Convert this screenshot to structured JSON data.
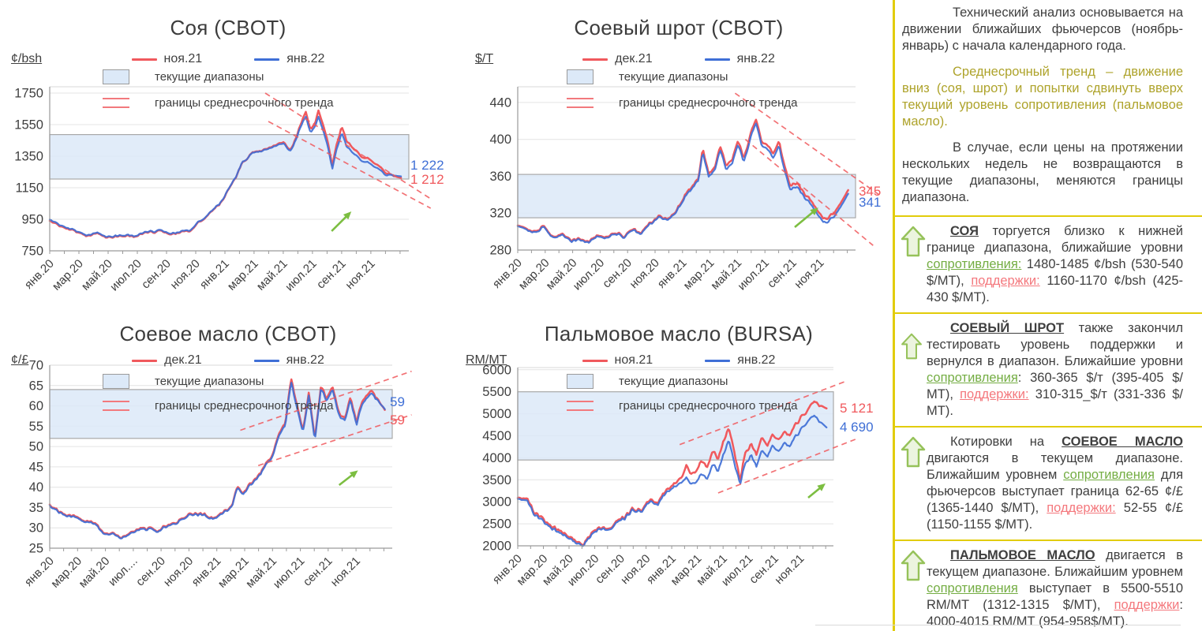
{
  "colors": {
    "red": "#F0595D",
    "blue": "#3F6FD6",
    "band_fill": "#DCE9F8",
    "band_border": "#A9A9A9",
    "grid": "#E4E4E4",
    "axis": "#9A9A9A",
    "top_border": "#DADADA",
    "green_arrow": "#7CBE41",
    "yellow_divider": "#E2CC0A",
    "olive_text": "#AEA32B",
    "text": "#3F3F3F",
    "resistance_green": "#74AD43",
    "support_red": "#F4787D"
  },
  "chart_data": [
    {
      "type": "line",
      "title": "Соя (CBOT)",
      "unit": "¢/bsh",
      "legend": {
        "series": [
          {
            "name": "ноя.21",
            "color": "red"
          },
          {
            "name": "янв.22",
            "color": "blue"
          }
        ],
        "range_label": "текущие диапазоны",
        "trend_label": "границы среднесрочного тренда"
      },
      "x_labels": [
        "янв.20",
        "мар.20",
        "май.20",
        "июл.20",
        "сен.20",
        "ноя.20",
        "янв.21",
        "мар.21",
        "май.21",
        "июл.21",
        "сен.21",
        "ноя.21"
      ],
      "y_ticks": [
        750,
        950,
        1150,
        1350,
        1550,
        1750
      ],
      "y_display": [
        750,
        1790
      ],
      "band": [
        1205,
        1487
      ],
      "channel": {
        "upper": [
          [
            13.8,
            1750
          ],
          [
            24.4,
            1080
          ]
        ],
        "lower": [
          [
            14.0,
            1570
          ],
          [
            24.4,
            1020
          ]
        ]
      },
      "arrow": [
        0.785,
        0.88,
        0.84,
        0.76
      ],
      "jitter": 9,
      "series": {
        "t": [
          0,
          0.6,
          1.2,
          1.8,
          2.4,
          3,
          3.5,
          4,
          4.5,
          5,
          5.5,
          6,
          6.5,
          7,
          7.5,
          8,
          8.5,
          9,
          9.5,
          10,
          10.5,
          11,
          11.5,
          12,
          12.3,
          12.6,
          13,
          13.5,
          14,
          14.5,
          15,
          15.4,
          15.8,
          16.1,
          16.4,
          16.7,
          17,
          17.2,
          17.5,
          17.8,
          18.1,
          18.4,
          18.7,
          19,
          19.5,
          20,
          20.5,
          21,
          21.5,
          22,
          22.5
        ],
        "red": [
          940,
          912,
          888,
          868,
          845,
          860,
          838,
          835,
          842,
          850,
          838,
          858,
          868,
          875,
          862,
          858,
          870,
          880,
          930,
          960,
          1010,
          1060,
          1150,
          1230,
          1310,
          1330,
          1370,
          1380,
          1400,
          1420,
          1435,
          1390,
          1470,
          1560,
          1630,
          1520,
          1560,
          1645,
          1555,
          1450,
          1285,
          1430,
          1540,
          1455,
          1390,
          1345,
          1330,
          1290,
          1250,
          1228,
          1212
        ],
        "blue": [
          948,
          918,
          893,
          872,
          849,
          864,
          842,
          839,
          846,
          854,
          842,
          862,
          872,
          879,
          866,
          862,
          874,
          884,
          933,
          963,
          1013,
          1063,
          1152,
          1232,
          1312,
          1330,
          1368,
          1378,
          1396,
          1415,
          1428,
          1382,
          1460,
          1545,
          1600,
          1500,
          1540,
          1605,
          1520,
          1420,
          1265,
          1400,
          1500,
          1420,
          1360,
          1320,
          1305,
          1270,
          1235,
          1230,
          1222
        ]
      },
      "end_labels": [
        {
          "series": "blue",
          "text": "1 222",
          "value": 1222,
          "dy": -14
        },
        {
          "series": "red",
          "text": "1 212",
          "value": 1212,
          "dy": 2
        }
      ]
    },
    {
      "type": "line",
      "title": "Соевый шрот (CBOT)",
      "unit": "$/Т",
      "legend": {
        "series": [
          {
            "name": "дек.21",
            "color": "red"
          },
          {
            "name": "янв.22",
            "color": "blue"
          }
        ],
        "range_label": "текущие диапазоны",
        "trend_label": "границы среднесрочного тренда"
      },
      "x_labels": [
        "янв.20",
        "мар.20",
        "май.20",
        "июл.20",
        "сен.20",
        "ноя.20",
        "янв.21",
        "мар.21",
        "май.21",
        "июл.21",
        "сен.21",
        "ноя.21"
      ],
      "y_ticks": [
        280,
        320,
        360,
        400,
        440
      ],
      "y_display": [
        280,
        457
      ],
      "band": [
        315,
        362
      ],
      "channel": {
        "upper": [
          [
            14.8,
            450
          ],
          [
            24.6,
            340
          ]
        ],
        "lower": [
          [
            15.5,
            400
          ],
          [
            24.2,
            285
          ]
        ]
      },
      "arrow": [
        0.82,
        0.86,
        0.89,
        0.74
      ],
      "jitter": 2.2,
      "series": {
        "t": [
          0,
          0.6,
          1.2,
          1.8,
          2.4,
          3,
          3.6,
          4.2,
          4.8,
          5.4,
          6,
          6.6,
          7.2,
          7.8,
          8.4,
          9,
          9.6,
          10.2,
          10.8,
          11.4,
          12,
          12.3,
          12.6,
          13,
          13.4,
          13.8,
          14.2,
          14.6,
          15,
          15.4,
          15.8,
          16.2,
          16.6,
          17,
          17.4,
          17.8,
          18.2,
          18.6,
          19,
          19.4,
          19.8,
          20.2,
          20.6,
          21,
          21.6,
          22.5
        ],
        "red": [
          308,
          304,
          299,
          306,
          295,
          297,
          291,
          293,
          289,
          296,
          293,
          299,
          295,
          303,
          298,
          309,
          316,
          314,
          322,
          340,
          352,
          358,
          390,
          362,
          370,
          392,
          370,
          378,
          398,
          380,
          402,
          422,
          398,
          392,
          386,
          398,
          368,
          348,
          354,
          344,
          336,
          328,
          318,
          313,
          322,
          345
        ],
        "blue": [
          307,
          303,
          298,
          305,
          294,
          296,
          290,
          292,
          288,
          295,
          292,
          298,
          294,
          302,
          297,
          308,
          315,
          313,
          321,
          338,
          350,
          356,
          386,
          359,
          367,
          388,
          366,
          374,
          394,
          376,
          398,
          418,
          394,
          388,
          381,
          393,
          363,
          344,
          350,
          340,
          332,
          324,
          314,
          309,
          318,
          341
        ]
      },
      "end_labels": [
        {
          "series": "red",
          "text": "345",
          "value": 345,
          "dy": 2
        },
        {
          "series": "blue",
          "text": "341",
          "value": 341,
          "dy": 11
        }
      ]
    },
    {
      "type": "line",
      "title": "Соевое масло (CBOT)",
      "unit": "¢/£",
      "legend": {
        "series": [
          {
            "name": "дек.21",
            "color": "red"
          },
          {
            "name": "янв.22",
            "color": "blue"
          }
        ],
        "range_label": "текущие диапазоны",
        "trend_label": "границы среднесрочного тренда"
      },
      "x_labels": [
        "янв.20",
        "мар.20",
        "май.20",
        "июл....",
        "сен.20",
        "ноя.20",
        "янв.21",
        "мар.21",
        "май.21",
        "июл.21",
        "сен.21",
        "ноя.21"
      ],
      "y_ticks": [
        25,
        30,
        35,
        40,
        45,
        50,
        55,
        60,
        65,
        70
      ],
      "y_display": [
        25,
        70
      ],
      "band": [
        52,
        64
      ],
      "channel": {
        "upper": [
          [
            12.8,
            54
          ],
          [
            24.3,
            68.5
          ]
        ],
        "lower": [
          [
            14.0,
            45.3
          ],
          [
            24.3,
            57.8
          ]
        ]
      },
      "arrow": [
        0.845,
        0.655,
        0.9,
        0.575
      ],
      "jitter": 0.5,
      "series": {
        "t": [
          0,
          0.6,
          1.2,
          1.8,
          2.4,
          3,
          3.6,
          4.2,
          4.8,
          5.4,
          6,
          6.6,
          7.2,
          7.8,
          8.4,
          9,
          9.6,
          10.2,
          10.8,
          11.4,
          12,
          12.3,
          12.6,
          13,
          13.4,
          13.8,
          14.2,
          14.6,
          15,
          15.4,
          15.8,
          16.2,
          16.6,
          17,
          17.4,
          17.8,
          18.2,
          18.6,
          19,
          19.4,
          19.8,
          20.2,
          20.6,
          21,
          21.6,
          22.5
        ],
        "red": [
          35.5,
          34.2,
          33.2,
          32.6,
          31.6,
          31.2,
          28.6,
          28.9,
          27.9,
          28.6,
          29.6,
          30.0,
          29.5,
          30.3,
          31.2,
          32.4,
          33.5,
          33.6,
          32.3,
          33.2,
          34.8,
          36.0,
          40.3,
          38.6,
          40.5,
          42.0,
          43.8,
          46.2,
          48.0,
          53.5,
          55.5,
          66.8,
          60.0,
          54.0,
          63.5,
          51.8,
          64.8,
          62.0,
          64.5,
          58.5,
          56.5,
          62.5,
          55.8,
          61.5,
          64.0,
          59.0
        ],
        "blue": [
          35.3,
          34.0,
          33.0,
          32.4,
          31.4,
          31.0,
          28.4,
          28.7,
          27.7,
          28.4,
          29.4,
          29.8,
          29.3,
          30.1,
          31.0,
          32.2,
          33.3,
          33.4,
          32.1,
          33.0,
          34.6,
          35.8,
          40.0,
          38.3,
          40.2,
          41.7,
          43.5,
          45.9,
          47.6,
          53.0,
          55.0,
          66.0,
          59.3,
          53.5,
          62.8,
          51.3,
          64.2,
          61.4,
          63.8,
          57.9,
          56.0,
          61.8,
          55.2,
          60.8,
          63.3,
          59.2
        ]
      },
      "end_labels": [
        {
          "series": "blue",
          "text": "59",
          "value": 59,
          "dy": -10
        },
        {
          "series": "red",
          "text": "59",
          "value": 59,
          "dy": 13
        }
      ]
    },
    {
      "type": "line",
      "title": "Пальмовое масло (BURSA)",
      "unit": "RM/MT",
      "legend": {
        "series": [
          {
            "name": "ноя.21",
            "color": "red"
          },
          {
            "name": "янв.22",
            "color": "blue"
          }
        ],
        "range_label": "текущие диапазоны",
        "trend_label": "границы среднесрочного тренда"
      },
      "x_labels": [
        "янв.20",
        "мар.20",
        "май.20",
        "июл.20",
        "сен.20",
        "ноя.20",
        "янв.21",
        "мар.21",
        "май.21",
        "июл.21",
        "сен.21",
        "ноя.21"
      ],
      "y_ticks": [
        2000,
        2500,
        3000,
        3500,
        4000,
        4500,
        5000,
        5500,
        6000
      ],
      "y_display": [
        2000,
        6050
      ],
      "band": [
        3950,
        5500
      ],
      "channel": {
        "upper": [
          [
            11.8,
            4300
          ],
          [
            24.0,
            5750
          ]
        ],
        "lower": [
          [
            14.6,
            3200
          ],
          [
            24.6,
            4420
          ]
        ]
      },
      "arrow": [
        0.92,
        0.73,
        0.975,
        0.65
      ],
      "jitter": 55,
      "series": {
        "t": [
          0,
          0.6,
          1.2,
          1.8,
          2.4,
          3,
          3.6,
          4.2,
          4.8,
          5.4,
          6,
          6.6,
          7.2,
          7.8,
          8.4,
          9,
          9.6,
          10.2,
          10.8,
          11.4,
          12,
          12.3,
          12.6,
          13,
          13.4,
          13.8,
          14.2,
          14.6,
          15,
          15.4,
          15.8,
          16.2,
          16.6,
          17,
          17.4,
          17.8,
          18.2,
          18.6,
          19,
          19.4,
          19.8,
          20.2,
          20.6,
          21,
          21.6,
          22.5
        ],
        "red": [
          3130,
          3080,
          2780,
          2620,
          2450,
          2350,
          2250,
          2100,
          2020,
          2300,
          2450,
          2400,
          2550,
          2650,
          2850,
          2800,
          3050,
          2980,
          3250,
          3420,
          3550,
          3850,
          3600,
          3700,
          3950,
          3820,
          4150,
          3980,
          4400,
          4650,
          4100,
          3500,
          4150,
          4300,
          4050,
          4500,
          4300,
          4550,
          4420,
          4600,
          4500,
          4750,
          4900,
          5050,
          5270,
          5121
        ],
        "blue": [
          3100,
          3040,
          2730,
          2570,
          2410,
          2300,
          2210,
          2060,
          2000,
          2260,
          2420,
          2370,
          2520,
          2620,
          2820,
          2770,
          3010,
          2940,
          3200,
          3350,
          3430,
          3560,
          3380,
          3450,
          3650,
          3550,
          3850,
          3700,
          4100,
          4380,
          3850,
          3420,
          3900,
          4050,
          3780,
          4200,
          4050,
          4300,
          4150,
          4350,
          4250,
          4480,
          4620,
          4800,
          4950,
          4690
        ]
      },
      "end_labels": [
        {
          "series": "red",
          "text": "5 121",
          "value": 5121,
          "dy": 0
        },
        {
          "series": "blue",
          "text": "4 690",
          "value": 4690,
          "dy": 0
        }
      ]
    }
  ],
  "sidebar": {
    "intro": [
      {
        "text": "Технический анализ основывается на движении ближайших фьючерсов (ноябрь-январь) с начала календарного года.",
        "tone": "dark"
      },
      {
        "text": "Среднесрочный тренд – движение вниз (соя, шрот) и попытки сдвинуть вверх текущий уровень сопротивления (пальмовое масло).",
        "tone": "olive"
      },
      {
        "text": "В случае, если цены на протяжении нескольких недель не возвращаются в текущие диапазоны, меняются границы диапазона.",
        "tone": "dark"
      }
    ],
    "sections": [
      {
        "segments": [
          {
            "s": "name",
            "t": "СОЯ"
          },
          {
            "s": "plain",
            "t": " торгуется близко к нижней границе диапазона, ближайшие уровни "
          },
          {
            "s": "res",
            "t": "сопротивления:"
          },
          {
            "s": "plain",
            "t": " 1480-1485 ¢/bsh (530-540 $/МТ), "
          },
          {
            "s": "sup",
            "t": "поддержки:"
          },
          {
            "s": "plain",
            "t": " 1160-1170 ¢/bsh (425-430 $/МТ)."
          }
        ]
      },
      {
        "segments": [
          {
            "s": "name",
            "t": "СОЕВЫЙ ШРОТ"
          },
          {
            "s": "plain",
            "t": " также закончил тестировать уровень поддержки и вернулся в диапазон. Ближайшие уровни "
          },
          {
            "s": "res",
            "t": "сопротивления"
          },
          {
            "s": "plain",
            "t": ": 360-365 $/т (395-405 $/МТ), "
          },
          {
            "s": "sup",
            "t": "поддержки:"
          },
          {
            "s": "plain",
            "t": " 310-315_$/т (331-336 $/МТ)."
          }
        ]
      },
      {
        "segments": [
          {
            "s": "plain",
            "t": "Котировки на "
          },
          {
            "s": "name",
            "t": "СОЕВОЕ МАСЛО"
          },
          {
            "s": "plain",
            "t": " двигаются в текущем диапазоне. Ближайшим уровнем "
          },
          {
            "s": "res",
            "t": "сопротивления"
          },
          {
            "s": "plain",
            "t": " для фьючерсов выступает граница 62-65 ¢/£ (1365-1440 $/МТ), "
          },
          {
            "s": "sup",
            "t": "поддержки:"
          },
          {
            "s": "plain",
            "t": " 52-55 ¢/£ (1150-1155 $/МТ)."
          }
        ]
      },
      {
        "segments": [
          {
            "s": "name",
            "t": "ПАЛЬМОВОЕ МАСЛО"
          },
          {
            "s": "plain",
            "t": " двигается в текущем диапазоне. Ближайшим уровнем "
          },
          {
            "s": "res",
            "t": "сопротивления"
          },
          {
            "s": "plain",
            "t": " выступает в 5500-5510 RM/МТ (1312-1315 $/МТ), "
          },
          {
            "s": "sup",
            "t": "поддержки"
          },
          {
            "s": "plain",
            "t": ": 4000-4015 RM/МТ (954-958$/МТ)."
          }
        ]
      }
    ]
  }
}
